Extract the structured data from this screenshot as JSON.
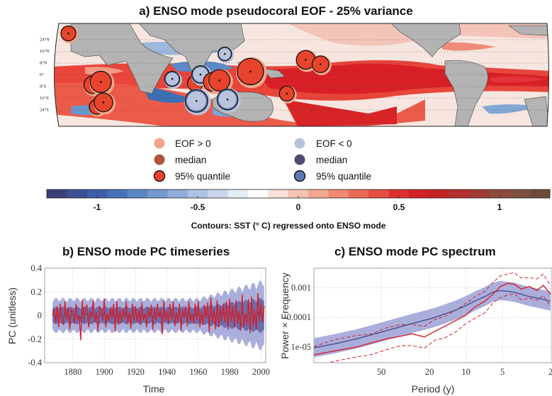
{
  "panel_a": {
    "title": "a) ENSO mode pseudocoral EOF - 25% variance",
    "lat_labels": [
      "24°N",
      "16°N",
      "8°N",
      "0°",
      "8°S",
      "16°S",
      "24°S"
    ],
    "legend": {
      "pos_label": "EOF > 0",
      "neg_label": "EOF < 0",
      "median_pos": "median",
      "median_neg": "median",
      "quant_pos": "95% quantile",
      "quant_neg": "95% quantile"
    },
    "colors": {
      "pos": "#f4a48a",
      "pos_median": "#b0533a",
      "pos_quant": "#e8432c",
      "neg": "#b9c4dc",
      "neg_median": "#4e4b73",
      "neg_quant": "#5a79b5"
    },
    "colorbar": {
      "ticks": [
        "-1",
        "-0.5",
        "0",
        "0.5",
        "1"
      ],
      "tick_values": [
        -1,
        -0.5,
        0,
        0.5,
        1
      ],
      "range": [
        -1.25,
        1.25
      ],
      "caption": "Contours: SST (° C) regressed onto ENSO mode"
    },
    "chart_data": {
      "type": "map",
      "sites": [
        {
          "lon": -15,
          "lat": 28,
          "sign": "pos",
          "size": 0.25
        },
        {
          "lon": 3,
          "lat": -7,
          "sign": "pos",
          "size": 0.35
        },
        {
          "lon": 9,
          "lat": -5,
          "sign": "pos",
          "size": 0.5
        },
        {
          "lon": 6,
          "lat": -22,
          "sign": "pos",
          "size": 0.25
        },
        {
          "lon": 11,
          "lat": -19,
          "sign": "pos",
          "size": 0.4
        },
        {
          "lon": 62,
          "lat": -3,
          "sign": "neg",
          "size": 0.25
        },
        {
          "lon": 79,
          "lat": -6,
          "sign": "pos",
          "size": 0.27
        },
        {
          "lon": 80,
          "lat": -18,
          "sign": "neg",
          "size": 0.55
        },
        {
          "lon": 83,
          "lat": 0,
          "sign": "neg",
          "size": 0.35
        },
        {
          "lon": 92,
          "lat": -5,
          "sign": "pos",
          "size": 0.4
        },
        {
          "lon": 97,
          "lat": -4,
          "sign": "pos",
          "size": 0.5
        },
        {
          "lon": 101,
          "lat": 14,
          "sign": "neg",
          "size": 0.2
        },
        {
          "lon": 103,
          "lat": -17,
          "sign": "neg",
          "size": 0.48
        },
        {
          "lon": 120,
          "lat": 2,
          "sign": "pos",
          "size": 0.7
        },
        {
          "lon": 147,
          "lat": -13,
          "sign": "pos",
          "size": 0.25
        },
        {
          "lon": 161,
          "lat": 10,
          "sign": "pos",
          "size": 0.4
        },
        {
          "lon": 172,
          "lat": 7,
          "sign": "pos",
          "size": 0.32
        }
      ]
    }
  },
  "panel_b": {
    "title": "b) ENSO mode PC timeseries",
    "ylabel": "PC (unitless)",
    "xlabel": "Time",
    "colors": {
      "line": "#d6202a",
      "band_outer": "#aaaedb",
      "band_inner": "#6a6fae",
      "median": "#4b4e86"
    },
    "chart_data": {
      "type": "line",
      "xlim": [
        1862,
        2003
      ],
      "ylim": [
        -0.4,
        0.4
      ],
      "xticks": [
        1880,
        1900,
        1920,
        1940,
        1960,
        1980,
        2000
      ],
      "yticks": [
        0.4,
        0.2,
        0,
        -0.2,
        -0.4
      ],
      "x_start": 1867,
      "x_step": 1,
      "values": [
        0.0,
        0.05,
        -0.06,
        0.08,
        -0.1,
        0.1,
        -0.02,
        -0.08,
        0.12,
        -0.04,
        0.07,
        -0.12,
        0.05,
        0.03,
        -0.07,
        0.1,
        -0.03,
        0.0,
        -0.21,
        0.13,
        -0.05,
        0.06,
        0.09,
        -0.1,
        0.04,
        -0.02,
        0.13,
        -0.06,
        0.03,
        -0.13,
        0.08,
        0.05,
        -0.04,
        0.14,
        -0.1,
        0.02,
        -0.05,
        0.07,
        -0.03,
        0.1,
        -0.14,
        0.12,
        -0.08,
        0.04,
        -0.06,
        0.06,
        -0.03,
        0.12,
        -0.07,
        0.03,
        -0.11,
        0.1,
        -0.05,
        0.08,
        -0.06,
        0.05,
        -0.08,
        0.11,
        -0.04,
        0.02,
        -0.1,
        0.07,
        -0.02,
        0.09,
        -0.12,
        0.06,
        -0.04,
        0.1,
        -0.02,
        0.05,
        -0.16,
        0.13,
        -0.05,
        0.04,
        -0.07,
        0.1,
        -0.04,
        0.12,
        -0.09,
        0.03,
        -0.06,
        0.1,
        -0.13,
        0.05,
        -0.02,
        0.08,
        -0.09,
        0.12,
        -0.05,
        0.02,
        -0.07,
        0.1,
        -0.04,
        0.12,
        -0.1,
        0.04,
        -0.08,
        0.09,
        -0.03,
        0.11,
        -0.14,
        0.15,
        -0.06,
        0.05,
        -0.12,
        0.13,
        -0.1,
        0.07,
        -0.05,
        0.1,
        -0.06,
        0.12,
        -0.12,
        0.14,
        -0.05,
        0.08,
        -0.1,
        0.13,
        -0.07,
        0.04,
        -0.13,
        0.18,
        -0.1,
        0.02,
        -0.08,
        0.14,
        -0.15,
        0.16,
        -0.09,
        0.05,
        -0.12,
        0.19,
        -0.05,
        0.1,
        -0.06,
        0.08
      ]
    }
  },
  "panel_c": {
    "title": "c) ENSO mode PC spectrum",
    "ylabel": "Power × Frequency",
    "xlabel": "Period (y)",
    "colors": {
      "line": "#d6202a",
      "band": "#aaaedb",
      "median": "#4b4e86"
    },
    "chart_data": {
      "type": "line",
      "x_scale": "log-frequency",
      "period_range": [
        180,
        1.95
      ],
      "ylim": [
        3e-06,
        0.0045
      ],
      "xticks": [
        "50",
        "20",
        "10",
        "5",
        "2"
      ],
      "xtick_values": [
        50,
        20,
        10,
        5,
        2
      ],
      "yticks": [
        "0.001",
        "0.0001",
        "1e-05"
      ],
      "ytick_values": [
        0.001,
        0.0001,
        1e-05
      ],
      "period": [
        180,
        120,
        80,
        60,
        45,
        35,
        28,
        22,
        18,
        15,
        12,
        10,
        8.5,
        7,
        6,
        5.2,
        4.5,
        4,
        3.5,
        3,
        2.6,
        2.3,
        2
      ],
      "red_median": [
        5.5e-06,
        7.5e-06,
        1e-05,
        1.4e-05,
        1.9e-05,
        2.3e-05,
        2.8e-05,
        2.2e-05,
        3.4e-05,
        5e-05,
        8e-05,
        0.00012,
        0.00022,
        0.00035,
        0.0006,
        0.0011,
        0.0014,
        0.0013,
        0.0009,
        0.0011,
        0.0008,
        0.0012,
        0.0006
      ],
      "blue_median": [
        9.5e-06,
        1.3e-05,
        1.9e-05,
        2.6e-05,
        3.6e-05,
        4.8e-05,
        6.2e-05,
        8e-05,
        0.0001,
        0.00013,
        0.00018,
        0.00025,
        0.00035,
        0.0005,
        0.0007,
        0.0008,
        0.00075,
        0.0007,
        0.0006,
        0.0005,
        0.00045,
        0.0004,
        0.00035
      ]
    }
  }
}
